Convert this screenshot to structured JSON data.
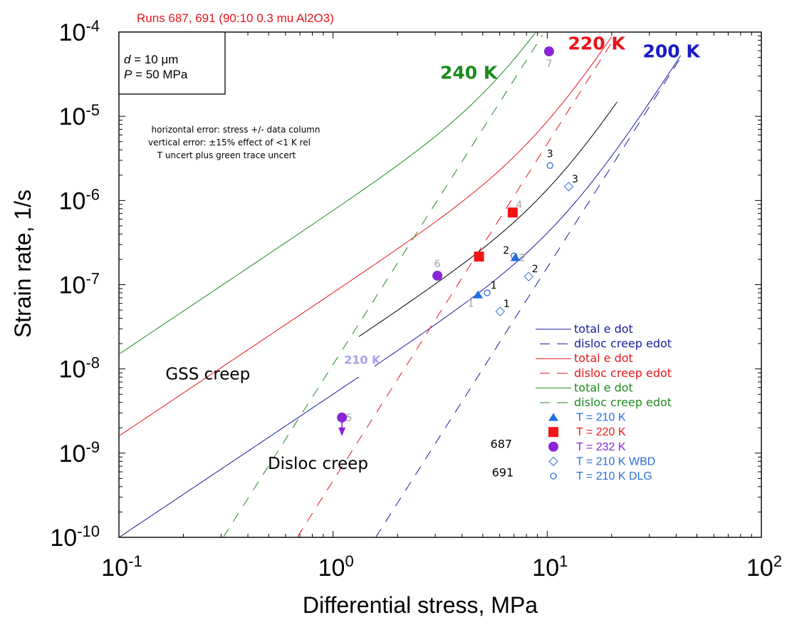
{
  "chart_data": {
    "type": "line",
    "title": "Runs 687, 691 (90:10 0.3 mu Al2O3)",
    "title_color": "#e8151b",
    "xlabel": "Differential stress, MPa",
    "ylabel": "Strain rate, 1/s",
    "xscale": "log",
    "yscale": "log",
    "xlim": [
      0.1,
      100
    ],
    "ylim": [
      1e-10,
      0.0001
    ],
    "grid": false,
    "x_ticks": [
      {
        "value": 0.1,
        "base": "10",
        "exp": "-1"
      },
      {
        "value": 1,
        "base": "10",
        "exp": "0"
      },
      {
        "value": 10,
        "base": "10",
        "exp": "1"
      },
      {
        "value": 100,
        "base": "10",
        "exp": "2"
      }
    ],
    "y_ticks": [
      {
        "value": 0.0001,
        "base": "10",
        "exp": "-4"
      },
      {
        "value": 1e-05,
        "base": "10",
        "exp": "-5"
      },
      {
        "value": 1e-06,
        "base": "10",
        "exp": "-6"
      },
      {
        "value": 1e-07,
        "base": "10",
        "exp": "-7"
      },
      {
        "value": 1e-08,
        "base": "10",
        "exp": "-8"
      },
      {
        "value": 1e-09,
        "base": "10",
        "exp": "-9"
      },
      {
        "value": 1e-10,
        "base": "10",
        "exp": "-10"
      }
    ],
    "params_box": {
      "d_sym": "d",
      "d_text": " = 10 μm",
      "p_sym": "P",
      "p_text": " = 50 MPa"
    },
    "error_note": [
      "horizontal error: stress +/- data column",
      "vertical error: ±15% effect of <1 K rel",
      "T uncert plus green trace uncert"
    ],
    "series": [
      {
        "name": "total e dot",
        "temperature": "200 K",
        "style": "solid",
        "color": "#1a1aa0",
        "model": {
          "gss_coeff": 5e-09,
          "gss_exp": 1.7,
          "disl_coeff": 1.6e-11,
          "disl_exp": 4.0
        },
        "x_range": [
          0.1,
          42
        ]
      },
      {
        "name": "disloc creep edot",
        "temperature": "200 K",
        "style": "dashed",
        "color": "#1a1aa0",
        "model": {
          "gss_coeff": 0,
          "gss_exp": 1.7,
          "disl_coeff": 1.6e-11,
          "disl_exp": 4.0
        },
        "x_range": [
          1.58,
          42
        ]
      },
      {
        "name": "total e dot",
        "temperature": "220 K",
        "style": "solid",
        "color": "#e8151b",
        "model": {
          "gss_coeff": 8e-08,
          "gss_exp": 1.7,
          "disl_coeff": 4.7e-10,
          "disl_exp": 4.0
        },
        "x_range": [
          0.1,
          20
        ]
      },
      {
        "name": "disloc creep edot",
        "temperature": "220 K",
        "style": "dashed",
        "color": "#e8151b",
        "model": {
          "gss_coeff": 0,
          "gss_exp": 1.7,
          "disl_coeff": 4.7e-10,
          "disl_exp": 4.0
        },
        "x_range": [
          0.68,
          20
        ]
      },
      {
        "name": "total e dot",
        "temperature": "240 K",
        "style": "solid",
        "color": "#1e8a1e",
        "model": {
          "gss_coeff": 7.5e-07,
          "gss_exp": 1.7,
          "disl_coeff": 1.13e-08,
          "disl_exp": 4.0
        },
        "x_range": [
          0.1,
          9
        ]
      },
      {
        "name": "disloc creep edot",
        "temperature": "240 K",
        "style": "dashed",
        "color": "#1e8a1e",
        "model": {
          "gss_coeff": 0,
          "gss_exp": 1.7,
          "disl_coeff": 1.13e-08,
          "disl_exp": 4.0
        },
        "x_range": [
          0.307,
          9.5
        ]
      },
      {
        "name": "210 K total",
        "temperature": "210 K",
        "style": "solid",
        "color": "#000000",
        "legend": false,
        "model": {
          "gss_coeff": 1.5e-08,
          "gss_exp": 1.7,
          "disl_coeff": 6e-11,
          "disl_exp": 4.0
        },
        "x_range": [
          1.32,
          21.2
        ]
      }
    ],
    "points": [
      {
        "set": "T = 210 K",
        "marker": "triangle",
        "color": "#1f6fe5",
        "x": 4.75,
        "y": 7.6e-08,
        "label": "1",
        "label_color": "#a0a0a0",
        "label_pos": "below-left"
      },
      {
        "set": "T = 210 K",
        "marker": "triangle",
        "color": "#1f6fe5",
        "x": 7.1,
        "y": 2.1e-07,
        "label": "2",
        "label_color": "#a0a0a0",
        "label_pos": "right"
      },
      {
        "set": "T = 220 K",
        "marker": "square",
        "color": "#f01515",
        "x": 4.8,
        "y": 2.16e-07,
        "label": "",
        "label_color": "#a0a0a0",
        "label_pos": "right"
      },
      {
        "set": "T = 220 K",
        "marker": "square",
        "color": "#f01515",
        "x": 6.9,
        "y": 7.2e-07,
        "label": "4",
        "label_color": "#a0a0a0",
        "label_pos": "upper-right"
      },
      {
        "set": "T = 232 K",
        "marker": "circle",
        "color": "#8a24d6",
        "x": 3.07,
        "y": 1.28e-07,
        "label": "6",
        "label_color": "#a0a0a0",
        "label_pos": "above"
      },
      {
        "set": "T = 232 K",
        "marker": "circle",
        "color": "#8a24d6",
        "x": 10.2,
        "y": 5.9e-05,
        "label": "7",
        "label_color": "#a0a0a0",
        "label_pos": "below"
      },
      {
        "set": "T = 232 K",
        "marker": "circle",
        "color": "#8a24d6",
        "x": 1.1,
        "y": 2.65e-09,
        "label": "5",
        "label_color": "#a0a0a0",
        "label_pos": "right",
        "upper_limit": true
      },
      {
        "set": "T = 210 K WBD",
        "marker": "diamond-open",
        "color": "#2b6fd6",
        "x": 6.03,
        "y": 4.8e-08,
        "label": "1",
        "label_color": "#000000",
        "label_pos": "upper-right"
      },
      {
        "set": "T = 210 K WBD",
        "marker": "diamond-open",
        "color": "#2b6fd6",
        "x": 8.19,
        "y": 1.25e-07,
        "label": "2",
        "label_color": "#000000",
        "label_pos": "upper-right"
      },
      {
        "set": "T = 210 K WBD",
        "marker": "diamond-open",
        "color": "#2b6fd6",
        "x": 12.6,
        "y": 1.46e-06,
        "label": "3",
        "label_color": "#000000",
        "label_pos": "upper-right"
      },
      {
        "set": "T = 210 K DLG",
        "marker": "circle-open",
        "color": "#2b6fd6",
        "x": 5.25,
        "y": 8e-08,
        "label": "1",
        "label_color": "#000000",
        "label_pos": "upper-right"
      },
      {
        "set": "T = 210 K DLG",
        "marker": "circle-open",
        "color": "#2b6fd6",
        "x": 7.0,
        "y": 2.2e-07,
        "label": "2",
        "label_color": "#000000",
        "label_pos": "upper-left"
      },
      {
        "set": "T = 210 K DLG",
        "marker": "circle-open",
        "color": "#2b6fd6",
        "x": 10.3,
        "y": 2.6e-06,
        "label": "3",
        "label_color": "#000000",
        "label_pos": "above"
      }
    ],
    "annotations": [
      {
        "text": "240 K",
        "color": "#1e8a1e",
        "x": 4.3,
        "y": 2.8e-05,
        "size": "large",
        "bold": true
      },
      {
        "text": "220 K",
        "color": "#e8151b",
        "x": 17.0,
        "y": 6.2e-05,
        "size": "large",
        "bold": true
      },
      {
        "text": "200 K",
        "color": "#1a1ac8",
        "x": 38.0,
        "y": 5e-05,
        "size": "large",
        "bold": true
      },
      {
        "text": "210 K",
        "color": "#a8a0ee",
        "x": 1.37,
        "y": 1.15e-08,
        "size": "small",
        "bold": true
      },
      {
        "text": "GSS creep",
        "color": "#000000",
        "x": 0.26,
        "y": 7.5e-09,
        "size": "medium",
        "bold": false
      },
      {
        "text": "Disloc creep",
        "color": "#000000",
        "x": 0.85,
        "y": 6.5e-10,
        "size": "medium",
        "bold": false
      },
      {
        "text": "687",
        "color": "#000000",
        "x": 6.1,
        "y": 1.15e-09,
        "size": "small",
        "bold": false
      },
      {
        "text": "691",
        "color": "#000000",
        "x": 6.2,
        "y": 5.3e-10,
        "size": "small",
        "bold": false
      }
    ],
    "legend": {
      "position": "lower-right",
      "entries": [
        {
          "label": "total e dot",
          "kind": "line-solid",
          "color": "#1a1aa0"
        },
        {
          "label": "disloc creep edot",
          "kind": "line-dashed",
          "color": "#1a1aa0"
        },
        {
          "label": "total e dot",
          "kind": "line-solid",
          "color": "#e8151b"
        },
        {
          "label": "disloc creep edot",
          "kind": "line-dashed",
          "color": "#e8151b"
        },
        {
          "label": "total e dot",
          "kind": "line-solid",
          "color": "#1e8a1e"
        },
        {
          "label": "disloc creep edot",
          "kind": "line-dashed",
          "color": "#1e8a1e"
        },
        {
          "label": "T = 210 K",
          "kind": "triangle",
          "color": "#1f6fe5"
        },
        {
          "label": "T = 220 K",
          "kind": "square",
          "color": "#f01515"
        },
        {
          "label": "T = 232 K",
          "kind": "circle",
          "color": "#8a24d6"
        },
        {
          "label": "T = 210 K WBD",
          "kind": "diamond-open",
          "color": "#2b6fd6"
        },
        {
          "label": "T = 210 K DLG",
          "kind": "circle-open",
          "color": "#2b6fd6"
        }
      ]
    }
  }
}
